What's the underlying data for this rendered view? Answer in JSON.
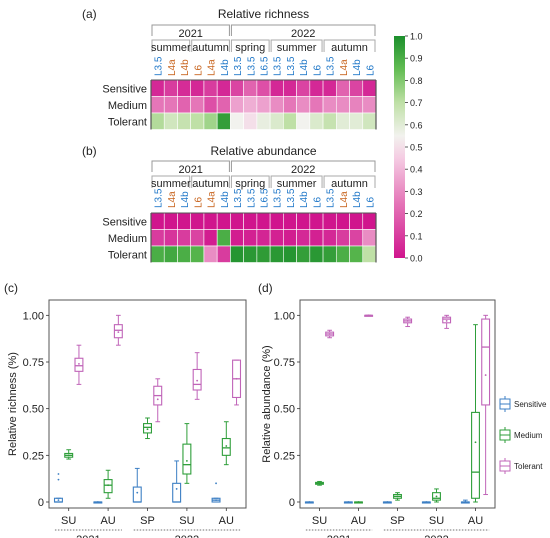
{
  "chart_data": [
    {
      "panel": "(a)",
      "type": "heatmap",
      "title": "Relative richness",
      "years": [
        {
          "label": "2021",
          "seasons": [
            "summer",
            "autumn"
          ]
        },
        {
          "label": "2022",
          "seasons": [
            "spring",
            "summer",
            "autumn"
          ]
        }
      ],
      "columns": [
        {
          "label": "L3.5",
          "color": "#1f77c8"
        },
        {
          "label": "L4a",
          "color": "#c8641e"
        },
        {
          "label": "L4b",
          "color": "#c8641e"
        },
        {
          "label": "L6",
          "color": "#c8641e"
        },
        {
          "label": "L4a",
          "color": "#c8641e"
        },
        {
          "label": "L4b",
          "color": "#1f77c8"
        },
        {
          "label": "L3.5",
          "color": "#1f77c8"
        },
        {
          "label": "L3.5",
          "color": "#1f77c8"
        },
        {
          "label": "L6.5",
          "color": "#1f77c8"
        },
        {
          "label": "L3.5",
          "color": "#1f77c8"
        },
        {
          "label": "L3.5",
          "color": "#1f77c8"
        },
        {
          "label": "L4b",
          "color": "#1f77c8"
        },
        {
          "label": "L6",
          "color": "#1f77c8"
        },
        {
          "label": "L3.5",
          "color": "#1f77c8"
        },
        {
          "label": "L4a",
          "color": "#c8641e"
        },
        {
          "label": "L4b",
          "color": "#1f77c8"
        },
        {
          "label": "L6",
          "color": "#1f77c8"
        }
      ],
      "rows": [
        "Sensitive",
        "Medium",
        "Tolerant"
      ],
      "values": [
        [
          0.05,
          0.1,
          0.06,
          0.05,
          0.1,
          0.05,
          0.12,
          0.2,
          0.15,
          0.05,
          0.05,
          0.12,
          0.05,
          0.05,
          0.2,
          0.12,
          0.05
        ],
        [
          0.25,
          0.25,
          0.2,
          0.25,
          0.15,
          0.2,
          0.35,
          0.38,
          0.35,
          0.3,
          0.25,
          0.3,
          0.25,
          0.3,
          0.3,
          0.28,
          0.3
        ],
        [
          0.72,
          0.65,
          0.68,
          0.7,
          0.75,
          0.95,
          0.55,
          0.5,
          0.58,
          0.62,
          0.7,
          0.55,
          0.62,
          0.68,
          0.6,
          0.6,
          0.65
        ]
      ],
      "colorbar": {
        "ticks": [
          "0.0",
          "0.1",
          "0.2",
          "0.3",
          "0.4",
          "0.5",
          "0.6",
          "0.7",
          "0.8",
          "0.9",
          "1.0"
        ],
        "range": [
          0,
          1
        ]
      }
    },
    {
      "panel": "(b)",
      "type": "heatmap",
      "title": "Relative abundance",
      "years": [
        {
          "label": "2021",
          "seasons": [
            "summer",
            "autumn"
          ]
        },
        {
          "label": "2022",
          "seasons": [
            "spring",
            "summer",
            "autumn"
          ]
        }
      ],
      "columns": [
        {
          "label": "L3.5",
          "color": "#1f77c8"
        },
        {
          "label": "L4a",
          "color": "#c8641e"
        },
        {
          "label": "L4b",
          "color": "#1f77c8"
        },
        {
          "label": "L6",
          "color": "#c8641e"
        },
        {
          "label": "L4a",
          "color": "#c8641e"
        },
        {
          "label": "L4b",
          "color": "#1f77c8"
        },
        {
          "label": "L3.5",
          "color": "#1f77c8"
        },
        {
          "label": "L3.5",
          "color": "#1f77c8"
        },
        {
          "label": "L6.5",
          "color": "#1f77c8"
        },
        {
          "label": "L3.5",
          "color": "#1f77c8"
        },
        {
          "label": "L3.5",
          "color": "#1f77c8"
        },
        {
          "label": "L4b",
          "color": "#1f77c8"
        },
        {
          "label": "L6",
          "color": "#1f77c8"
        },
        {
          "label": "L3.5",
          "color": "#1f77c8"
        },
        {
          "label": "L4a",
          "color": "#c8641e"
        },
        {
          "label": "L4b",
          "color": "#1f77c8"
        },
        {
          "label": "L6",
          "color": "#1f77c8"
        }
      ],
      "rows": [
        "Sensitive",
        "Medium",
        "Tolerant"
      ],
      "values": [
        [
          0.0,
          0.0,
          0.0,
          0.0,
          0.0,
          0.0,
          0.0,
          0.0,
          0.0,
          0.0,
          0.0,
          0.0,
          0.0,
          0.0,
          0.0,
          0.0,
          0.0
        ],
        [
          0.1,
          0.08,
          0.1,
          0.12,
          0.02,
          0.9,
          0.02,
          0.03,
          0.04,
          0.03,
          0.02,
          0.05,
          0.03,
          0.05,
          0.1,
          0.12,
          0.3
        ],
        [
          0.9,
          0.92,
          0.9,
          0.88,
          0.3,
          0.1,
          0.98,
          0.97,
          0.96,
          0.97,
          0.98,
          0.95,
          0.97,
          0.95,
          0.9,
          0.88,
          0.7
        ]
      ]
    },
    {
      "panel": "(c)",
      "type": "box",
      "ylabel": "Relative richness (%)",
      "ylim": [
        0,
        1.05
      ],
      "yticks": [
        "0",
        "0.25",
        "0.50",
        "0.75",
        "1.00"
      ],
      "yticks_values": [
        0,
        0.25,
        0.5,
        0.75,
        1.0
      ],
      "groups": [
        "SU",
        "AU",
        "SP",
        "SU",
        "AU"
      ],
      "years": [
        {
          "label": "2021",
          "from": 0,
          "to": 1
        },
        {
          "label": "2022",
          "from": 2,
          "to": 4
        }
      ],
      "series": [
        {
          "name": "Sensitive",
          "color": "#3c7fc4",
          "boxes": [
            {
              "min": 0,
              "q1": 0,
              "med": 0,
              "q3": 0.02,
              "max": 0.02,
              "mean": 0.01,
              "outliers": [
                0.12,
                0.15
              ]
            },
            {
              "min": 0,
              "q1": 0,
              "med": 0,
              "q3": 0,
              "max": 0,
              "mean": 0.0,
              "outliers": []
            },
            {
              "min": 0,
              "q1": 0,
              "med": 0,
              "q3": 0.08,
              "max": 0.18,
              "mean": 0.05,
              "outliers": []
            },
            {
              "min": 0,
              "q1": 0,
              "med": 0,
              "q3": 0.1,
              "max": 0.22,
              "mean": 0.07,
              "outliers": []
            },
            {
              "min": 0,
              "q1": 0,
              "med": 0.01,
              "q3": 0.02,
              "max": 0.02,
              "mean": 0.01,
              "outliers": [
                0.1
              ]
            }
          ]
        },
        {
          "name": "Medium",
          "color": "#2e9e3a",
          "boxes": [
            {
              "min": 0.23,
              "q1": 0.24,
              "med": 0.25,
              "q3": 0.26,
              "max": 0.28,
              "mean": 0.25,
              "outliers": []
            },
            {
              "min": 0.02,
              "q1": 0.05,
              "med": 0.09,
              "q3": 0.12,
              "max": 0.17,
              "mean": 0.09,
              "outliers": []
            },
            {
              "min": 0.34,
              "q1": 0.37,
              "med": 0.4,
              "q3": 0.42,
              "max": 0.45,
              "mean": 0.39,
              "outliers": []
            },
            {
              "min": 0.1,
              "q1": 0.15,
              "med": 0.2,
              "q3": 0.31,
              "max": 0.42,
              "mean": 0.22,
              "outliers": []
            },
            {
              "min": 0.2,
              "q1": 0.25,
              "med": 0.29,
              "q3": 0.34,
              "max": 0.43,
              "mean": 0.3,
              "outliers": []
            }
          ]
        },
        {
          "name": "Tolerant",
          "color": "#c064b8",
          "boxes": [
            {
              "min": 0.63,
              "q1": 0.7,
              "med": 0.73,
              "q3": 0.77,
              "max": 0.84,
              "mean": 0.74,
              "outliers": []
            },
            {
              "min": 0.84,
              "q1": 0.88,
              "med": 0.92,
              "q3": 0.95,
              "max": 1.0,
              "mean": 0.91,
              "outliers": []
            },
            {
              "min": 0.43,
              "q1": 0.52,
              "med": 0.57,
              "q3": 0.62,
              "max": 0.66,
              "mean": 0.55,
              "outliers": []
            },
            {
              "min": 0.55,
              "q1": 0.6,
              "med": 0.63,
              "q3": 0.71,
              "max": 0.8,
              "mean": 0.65,
              "outliers": []
            },
            {
              "min": 0.52,
              "q1": 0.56,
              "med": 0.66,
              "q3": 0.76,
              "max": 0.76,
              "mean": 0.66,
              "outliers": []
            }
          ]
        }
      ]
    },
    {
      "panel": "(d)",
      "type": "box",
      "ylabel": "Relative abundance (%)",
      "ylim": [
        0,
        1.05
      ],
      "yticks": [
        "0",
        "0.25",
        "0.50",
        "0.75",
        "1.00"
      ],
      "yticks_values": [
        0,
        0.25,
        0.5,
        0.75,
        1.0
      ],
      "groups": [
        "SU",
        "AU",
        "SP",
        "SU",
        "AU"
      ],
      "years": [
        {
          "label": "2021",
          "from": 0,
          "to": 1
        },
        {
          "label": "2022",
          "from": 2,
          "to": 4
        }
      ],
      "legend": [
        "Sensitive",
        "Medium",
        "Tolerant"
      ],
      "series": [
        {
          "name": "Sensitive",
          "color": "#3c7fc4",
          "boxes": [
            {
              "min": 0,
              "q1": 0,
              "med": 0,
              "q3": 0,
              "max": 0,
              "mean": 0,
              "outliers": []
            },
            {
              "min": 0,
              "q1": 0,
              "med": 0,
              "q3": 0,
              "max": 0,
              "mean": 0,
              "outliers": []
            },
            {
              "min": 0,
              "q1": 0,
              "med": 0,
              "q3": 0,
              "max": 0,
              "mean": 0,
              "outliers": []
            },
            {
              "min": 0,
              "q1": 0,
              "med": 0,
              "q3": 0,
              "max": 0,
              "mean": 0,
              "outliers": []
            },
            {
              "min": 0,
              "q1": 0,
              "med": 0,
              "q3": 0,
              "max": 0.01,
              "mean": 0,
              "outliers": []
            }
          ]
        },
        {
          "name": "Medium",
          "color": "#2e9e3a",
          "boxes": [
            {
              "min": 0.09,
              "q1": 0.095,
              "med": 0.1,
              "q3": 0.105,
              "max": 0.11,
              "mean": 0.1,
              "outliers": []
            },
            {
              "min": 0,
              "q1": 0,
              "med": 0,
              "q3": 0,
              "max": 0,
              "mean": 0,
              "outliers": []
            },
            {
              "min": 0.01,
              "q1": 0.02,
              "med": 0.03,
              "q3": 0.04,
              "max": 0.05,
              "mean": 0.03,
              "outliers": []
            },
            {
              "min": 0.0,
              "q1": 0.01,
              "med": 0.02,
              "q3": 0.05,
              "max": 0.07,
              "mean": 0.03,
              "outliers": []
            },
            {
              "min": 0.0,
              "q1": 0.02,
              "med": 0.16,
              "q3": 0.48,
              "max": 0.95,
              "mean": 0.32,
              "outliers": []
            }
          ]
        },
        {
          "name": "Tolerant",
          "color": "#c064b8",
          "boxes": [
            {
              "min": 0.88,
              "q1": 0.89,
              "med": 0.9,
              "q3": 0.91,
              "max": 0.92,
              "mean": 0.9,
              "outliers": []
            },
            {
              "min": 1.0,
              "q1": 1.0,
              "med": 1.0,
              "q3": 1.0,
              "max": 1.0,
              "mean": 1.0,
              "outliers": []
            },
            {
              "min": 0.94,
              "q1": 0.96,
              "med": 0.97,
              "q3": 0.98,
              "max": 0.99,
              "mean": 0.97,
              "outliers": []
            },
            {
              "min": 0.93,
              "q1": 0.96,
              "med": 0.98,
              "q3": 0.99,
              "max": 1.0,
              "mean": 0.97,
              "outliers": []
            },
            {
              "min": 0.04,
              "q1": 0.52,
              "med": 0.83,
              "q3": 0.98,
              "max": 1.0,
              "mean": 0.68,
              "outliers": []
            }
          ]
        }
      ]
    }
  ]
}
